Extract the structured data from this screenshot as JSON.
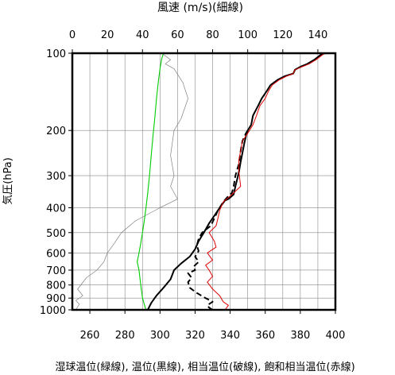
{
  "chart_data": {
    "type": "line",
    "top_axis": {
      "label": "風速 (m/s)(細線)",
      "range": [
        0,
        150
      ],
      "ticks": [
        0,
        20,
        40,
        60,
        80,
        100,
        120,
        140
      ],
      "tick_labels": [
        "0",
        "20",
        "40",
        "60",
        "80",
        "100",
        "120",
        "140"
      ]
    },
    "bottom_axis": {
      "range": [
        250,
        400
      ],
      "ticks": [
        260,
        280,
        300,
        320,
        340,
        360,
        380,
        400
      ],
      "tick_labels": [
        "260",
        "280",
        "300",
        "320",
        "340",
        "360",
        "380",
        "400"
      ]
    },
    "y_axis": {
      "label": "気圧(hPa)",
      "scale": "log",
      "inverted": true,
      "range": [
        1000,
        100
      ],
      "ticks": [
        100,
        200,
        300,
        400,
        500,
        600,
        700,
        800,
        900,
        1000
      ],
      "tick_labels": [
        "100",
        "200",
        "300",
        "400",
        "500",
        "600",
        "700",
        "800",
        "900",
        "1000"
      ]
    },
    "caption": "湿球温位(緑線), 温位(黒線), 相当温位(破線), 飽和相当温位(赤線)",
    "grid": true,
    "series": [
      {
        "key": "wind_speed",
        "axis": "top",
        "color": "#808080",
        "style": "thin",
        "points": [
          [
            2,
            1000
          ],
          [
            4,
            950
          ],
          [
            2,
            920
          ],
          [
            6,
            880
          ],
          [
            3,
            830
          ],
          [
            8,
            750
          ],
          [
            14,
            700
          ],
          [
            18,
            650
          ],
          [
            20,
            600
          ],
          [
            24,
            550
          ],
          [
            28,
            500
          ],
          [
            36,
            450
          ],
          [
            50,
            400
          ],
          [
            60,
            370
          ],
          [
            56,
            330
          ],
          [
            58,
            300
          ],
          [
            56,
            250
          ],
          [
            58,
            200
          ],
          [
            62,
            180
          ],
          [
            66,
            150
          ],
          [
            63,
            130
          ],
          [
            58,
            115
          ],
          [
            53,
            110
          ],
          [
            56,
            106
          ],
          [
            51,
            100
          ]
        ]
      },
      {
        "key": "wet_bulb_potential_temperature",
        "axis": "bottom",
        "color": "#00cc00",
        "style": "solid",
        "points": [
          [
            292,
            1000
          ],
          [
            291,
            950
          ],
          [
            290,
            900
          ],
          [
            289.5,
            850
          ],
          [
            289,
            800
          ],
          [
            288.5,
            750
          ],
          [
            288,
            700
          ],
          [
            287,
            650
          ],
          [
            288,
            600
          ],
          [
            289,
            550
          ],
          [
            290,
            500
          ],
          [
            291,
            450
          ],
          [
            292,
            400
          ],
          [
            293,
            350
          ],
          [
            294,
            300
          ],
          [
            295,
            250
          ],
          [
            296,
            210
          ],
          [
            297,
            180
          ],
          [
            298,
            150
          ],
          [
            299,
            130
          ],
          [
            300,
            115
          ],
          [
            301,
            105
          ],
          [
            302,
            100
          ]
        ]
      },
      {
        "key": "potential_temperature",
        "axis": "bottom",
        "color": "#000000",
        "style": "solid",
        "points": [
          [
            293,
            1000
          ],
          [
            295,
            940
          ],
          [
            298,
            880
          ],
          [
            302,
            820
          ],
          [
            306,
            760
          ],
          [
            308,
            700
          ],
          [
            312,
            660
          ],
          [
            317,
            620
          ],
          [
            320,
            580
          ],
          [
            322,
            540
          ],
          [
            325,
            500
          ],
          [
            328,
            460
          ],
          [
            331,
            430
          ],
          [
            334,
            400
          ],
          [
            337,
            375
          ],
          [
            339,
            370
          ],
          [
            342,
            355
          ],
          [
            343,
            330
          ],
          [
            344,
            310
          ],
          [
            345,
            290
          ],
          [
            346,
            265
          ],
          [
            347,
            245
          ],
          [
            348,
            225
          ],
          [
            349,
            210
          ],
          [
            350,
            200
          ],
          [
            352,
            190
          ],
          [
            353,
            175
          ],
          [
            356,
            160
          ],
          [
            358,
            150
          ],
          [
            361,
            140
          ],
          [
            363,
            133
          ],
          [
            367,
            127
          ],
          [
            371,
            123
          ],
          [
            376,
            120
          ],
          [
            377,
            116
          ],
          [
            380,
            113
          ],
          [
            384,
            110
          ],
          [
            388,
            106
          ],
          [
            392,
            101
          ],
          [
            394,
            100
          ]
        ]
      },
      {
        "key": "equivalent_potential_temperature",
        "axis": "bottom",
        "color": "#000000",
        "style": "dashed",
        "points": [
          [
            330,
            1000
          ],
          [
            328,
            980
          ],
          [
            327,
            960
          ],
          [
            330,
            930
          ],
          [
            326,
            900
          ],
          [
            321,
            860
          ],
          [
            317,
            820
          ],
          [
            316,
            780
          ],
          [
            318,
            750
          ],
          [
            316,
            720
          ],
          [
            320,
            700
          ],
          [
            319,
            680
          ],
          [
            322,
            650
          ],
          [
            320,
            620
          ],
          [
            322,
            590
          ],
          [
            321,
            560
          ],
          [
            322,
            530
          ],
          [
            324,
            500
          ],
          [
            329,
            470
          ],
          [
            331,
            440
          ],
          [
            333,
            410
          ],
          [
            336,
            380
          ],
          [
            339,
            360
          ],
          [
            341,
            350
          ],
          [
            342,
            330
          ],
          [
            343,
            300
          ],
          [
            345,
            270
          ],
          [
            346,
            240
          ],
          [
            347,
            220
          ],
          [
            349,
            205
          ],
          [
            350,
            200
          ]
        ]
      },
      {
        "key": "saturated_equivalent_potential_temperature",
        "axis": "bottom",
        "color": "#e00000",
        "style": "solid",
        "points": [
          [
            337,
            1000
          ],
          [
            339,
            960
          ],
          [
            336,
            930
          ],
          [
            334,
            880
          ],
          [
            330,
            830
          ],
          [
            327,
            780
          ],
          [
            330,
            740
          ],
          [
            328,
            700
          ],
          [
            326,
            670
          ],
          [
            330,
            640
          ],
          [
            327,
            600
          ],
          [
            332,
            570
          ],
          [
            331,
            540
          ],
          [
            328,
            500
          ],
          [
            332,
            470
          ],
          [
            333,
            440
          ],
          [
            334,
            410
          ],
          [
            336,
            380
          ],
          [
            340,
            360
          ],
          [
            342,
            350
          ],
          [
            346,
            330
          ],
          [
            345,
            290
          ],
          [
            345,
            260
          ],
          [
            346,
            240
          ],
          [
            347,
            220
          ],
          [
            350,
            205
          ],
          [
            351,
            200
          ],
          [
            353,
            190
          ],
          [
            355,
            175
          ],
          [
            357,
            160
          ],
          [
            360,
            150
          ],
          [
            362,
            140
          ],
          [
            364,
            133
          ],
          [
            368,
            127
          ],
          [
            372,
            123
          ],
          [
            376,
            120
          ],
          [
            377,
            116
          ],
          [
            381,
            113
          ],
          [
            385,
            110
          ],
          [
            389,
            106
          ],
          [
            393,
            101
          ],
          [
            395,
            100
          ]
        ]
      }
    ]
  }
}
